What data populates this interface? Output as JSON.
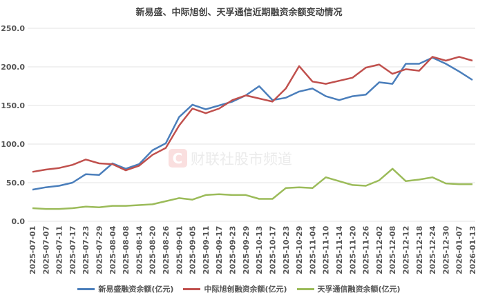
{
  "chart_data": {
    "type": "line",
    "title": "新易盛、中际旭创、天孚通信近期融资余额变动情况",
    "xlabel": "",
    "ylabel": "",
    "ylim": [
      0,
      250
    ],
    "yticks": [
      "0.0",
      "50.0",
      "100.0",
      "150.0",
      "200.0",
      "250.0"
    ],
    "grid": true,
    "legend_position": "bottom",
    "watermark": "财联社股市频道",
    "x": [
      "2025-07-01",
      "2025-07-07",
      "2025-07-11",
      "2025-07-17",
      "2025-07-23",
      "2025-07-29",
      "2025-08-04",
      "2025-08-08",
      "2025-08-14",
      "2025-08-20",
      "2025-08-26",
      "2025-09-01",
      "2025-09-05",
      "2025-09-11",
      "2025-09-17",
      "2025-09-23",
      "2025-09-29",
      "2025-10-13",
      "2025-10-17",
      "2025-10-23",
      "2025-10-29",
      "2025-11-04",
      "2025-11-10",
      "2025-11-14",
      "2025-11-20",
      "2025-11-26",
      "2025-12-02",
      "2025-12-08",
      "2025-12-12",
      "2025-12-18",
      "2025-12-24",
      "2025-12-30",
      "2026-01-07",
      "2026-01-13"
    ],
    "series": [
      {
        "name": "新易盛融资余额(亿元)",
        "color": "#4a7ebb",
        "values": [
          41,
          44,
          46,
          50,
          61,
          60,
          75,
          68,
          74,
          92,
          101,
          135,
          151,
          145,
          150,
          155,
          163,
          175,
          157,
          160,
          168,
          172,
          162,
          157,
          162,
          164,
          180,
          178,
          204,
          204,
          212,
          204,
          194,
          183
        ]
      },
      {
        "name": "中际旭创融资余额(亿元)",
        "color": "#c0504d",
        "values": [
          64,
          67,
          69,
          73,
          80,
          75,
          74,
          66,
          72,
          86,
          95,
          124,
          146,
          140,
          146,
          157,
          163,
          159,
          155,
          172,
          201,
          181,
          178,
          182,
          186,
          199,
          203,
          191,
          197,
          195,
          213,
          208,
          213,
          208
        ]
      },
      {
        "name": "天孚通信融资余额(亿元)",
        "color": "#9bbb59",
        "values": [
          17,
          16,
          16,
          17,
          19,
          18,
          20,
          20,
          21,
          22,
          26,
          30,
          28,
          34,
          35,
          34,
          34,
          29,
          29,
          43,
          44,
          43,
          57,
          52,
          47,
          46,
          53,
          68,
          52,
          54,
          57,
          49,
          48,
          48
        ]
      }
    ]
  }
}
